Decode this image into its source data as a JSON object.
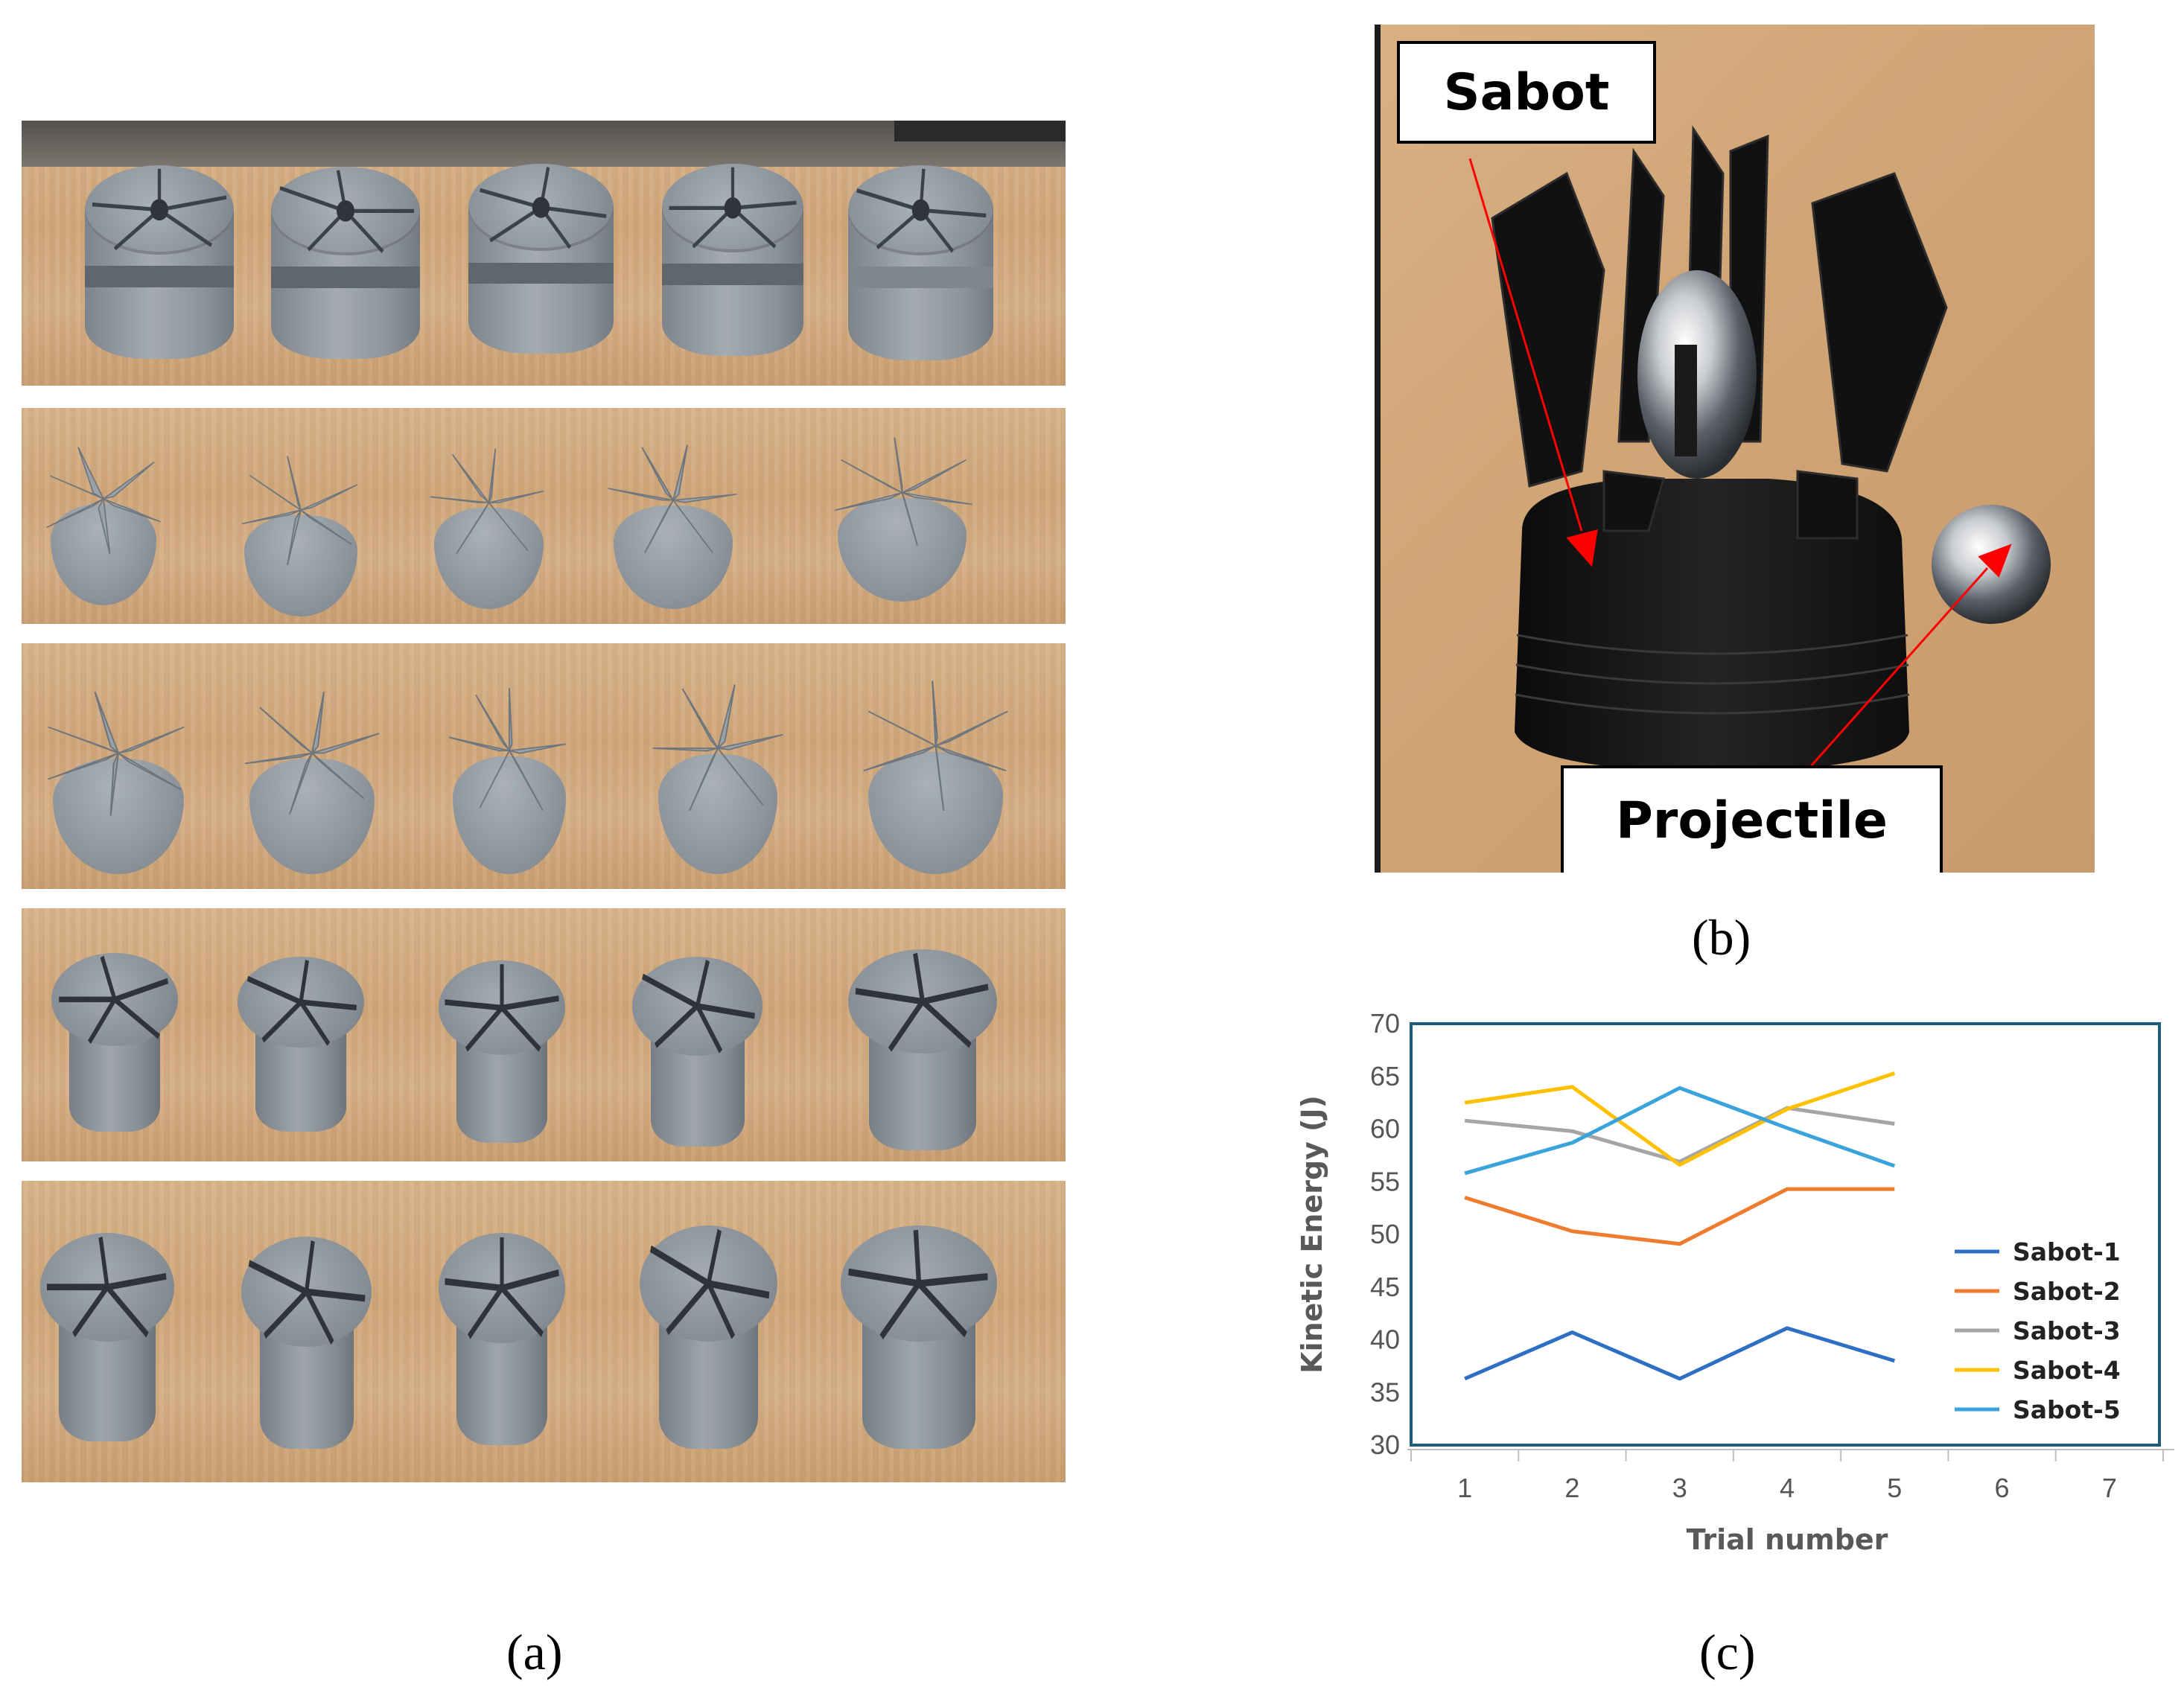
{
  "panels": {
    "a": {
      "label": "(a)"
    },
    "b": {
      "label": "(b)",
      "callout_sabot": "Sabot",
      "callout_projectile": "Projectile"
    },
    "c": {
      "label": "(c)"
    }
  },
  "colors": {
    "sabot_1": "#2e6fc4",
    "sabot_2": "#ef7c2e",
    "sabot_3": "#a5a5a5",
    "sabot_4": "#ffc000",
    "sabot_5": "#3ba3dc",
    "chart_border": "#1f5b7a",
    "arrow": "#ff0000"
  },
  "chart_data": {
    "type": "line",
    "title": "",
    "xlabel": "Trial number",
    "ylabel": "Kinetic Energy (J)",
    "x_ticks": [
      1,
      2,
      3,
      4,
      5,
      6,
      7
    ],
    "y_ticks": [
      30,
      35,
      40,
      45,
      50,
      55,
      60,
      65,
      70
    ],
    "ylim": [
      30,
      70
    ],
    "xlim": [
      0.5,
      7.5
    ],
    "grid": false,
    "legend_position": "right",
    "x": [
      1,
      2,
      3,
      4,
      5
    ],
    "series": [
      {
        "name": "Sabot-1",
        "values": [
          36.3,
          40.7,
          36.3,
          41.1,
          38.0
        ]
      },
      {
        "name": "Sabot-2",
        "values": [
          53.5,
          50.3,
          49.1,
          54.3,
          54.3
        ]
      },
      {
        "name": "Sabot-3",
        "values": [
          60.8,
          59.8,
          56.9,
          62.0,
          60.5
        ]
      },
      {
        "name": "Sabot-4",
        "values": [
          62.5,
          64.0,
          56.6,
          61.9,
          65.3
        ]
      },
      {
        "name": "Sabot-5",
        "values": [
          55.8,
          58.7,
          63.9,
          60.1,
          56.5
        ]
      }
    ]
  }
}
